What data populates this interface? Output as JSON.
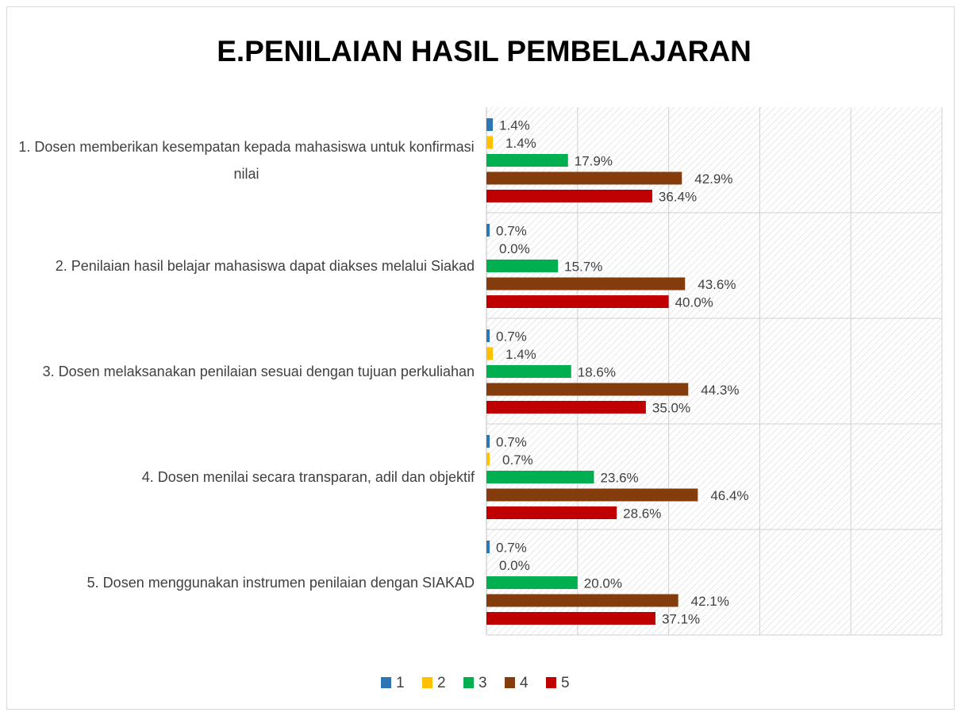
{
  "chart_data": {
    "type": "hbar",
    "title": "E.PENILAIAN HASIL PEMBELAJARAN",
    "categories": [
      "1. Dosen memberikan kesempatan kepada mahasiswa untuk konfirmasi nilai",
      "2. Penilaian hasil belajar mahasiswa dapat diakses melalui Siakad",
      "3. Dosen melaksanakan penilaian sesuai dengan tujuan perkuliahan",
      "4. Dosen menilai secara transparan, adil dan objektif",
      "5. Dosen menggunakan instrumen penilaian dengan SIAKAD"
    ],
    "series": [
      {
        "name": "1",
        "color": "#2e75b6",
        "values": [
          1.4,
          0.7,
          0.7,
          0.7,
          0.7
        ],
        "value_labels": [
          "1.4%",
          "0.7%",
          "0.7%",
          "0.7%",
          "0.7%"
        ]
      },
      {
        "name": "2",
        "color": "#ffc000",
        "values": [
          1.4,
          0.0,
          1.4,
          0.7,
          0.0
        ],
        "value_labels": [
          "1.4%",
          "0.0%",
          "1.4%",
          "0.7%",
          "0.0%"
        ]
      },
      {
        "name": "3",
        "color": "#00b050",
        "values": [
          17.9,
          15.7,
          18.6,
          23.6,
          20.0
        ],
        "value_labels": [
          "17.9%",
          "15.7%",
          "18.6%",
          "23.6%",
          "20.0%"
        ]
      },
      {
        "name": "4",
        "color": "#843c0c",
        "values": [
          42.9,
          43.6,
          44.3,
          46.4,
          42.1
        ],
        "value_labels": [
          "42.9%",
          "43.6%",
          "44.3%",
          "46.4%",
          "42.1%"
        ]
      },
      {
        "name": "5",
        "color": "#c00000",
        "values": [
          36.4,
          40.0,
          35.0,
          28.6,
          37.1
        ],
        "value_labels": [
          "36.4%",
          "40.0%",
          "35.0%",
          "28.6%",
          "37.1%"
        ]
      }
    ],
    "xlim": [
      0,
      100
    ],
    "xticks": [
      0,
      20,
      40,
      60,
      80,
      100
    ],
    "grid": true,
    "legend": "bottom"
  }
}
